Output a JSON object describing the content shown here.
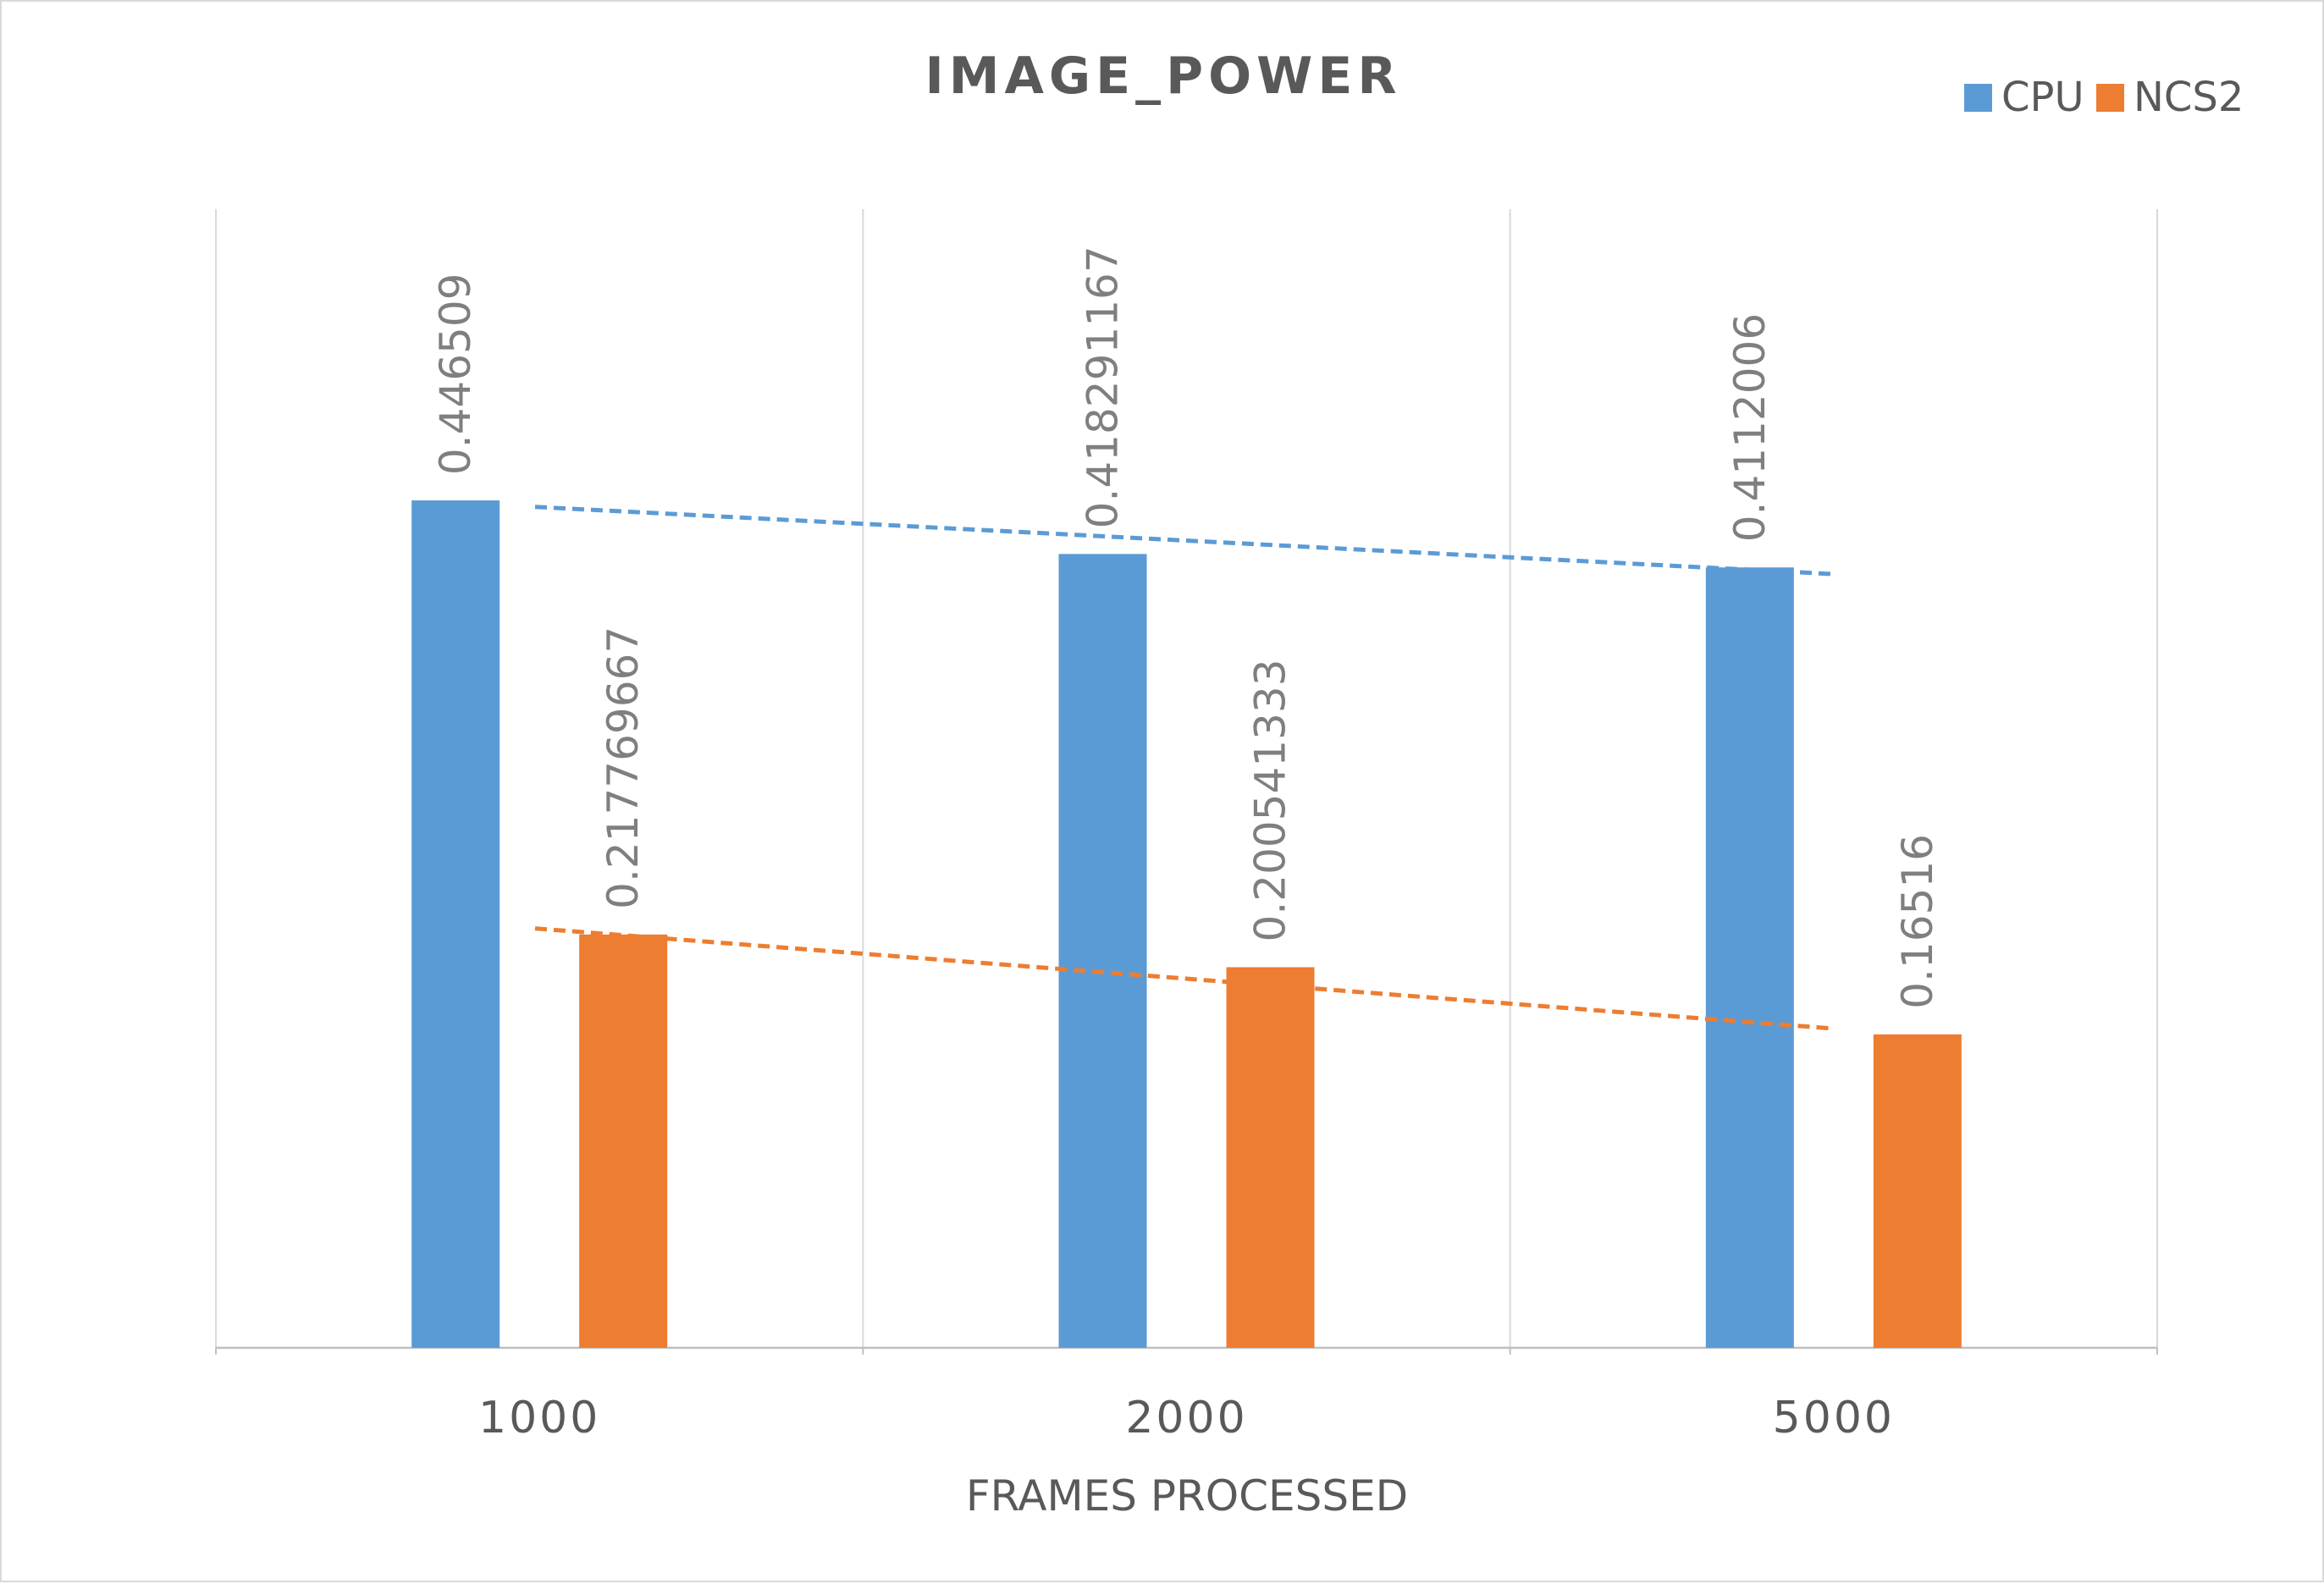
{
  "chart_data": {
    "type": "bar",
    "title": "IMAGE_POWER",
    "xlabel": "FRAMES PROCESSED",
    "ylabel": "",
    "categories": [
      "1000",
      "2000",
      "5000"
    ],
    "series": [
      {
        "name": "CPU",
        "color": "#5b9bd5",
        "values": [
          0.446509,
          0.418291167,
          0.4112006
        ],
        "labels": [
          "0.446509",
          "0.418291167",
          "0.4112006"
        ]
      },
      {
        "name": "NCS2",
        "color": "#ed7d31",
        "values": [
          0.217769667,
          0.200541333,
          0.16516
        ],
        "labels": [
          "0.217769667",
          "0.200541333",
          "0.16516"
        ]
      }
    ],
    "ylim": [
      0,
      0.6
    ],
    "trendline": "linear, dashed, per series",
    "legend": "top-right",
    "grid": "vertical lines between categories",
    "value_axis_visible": false
  }
}
